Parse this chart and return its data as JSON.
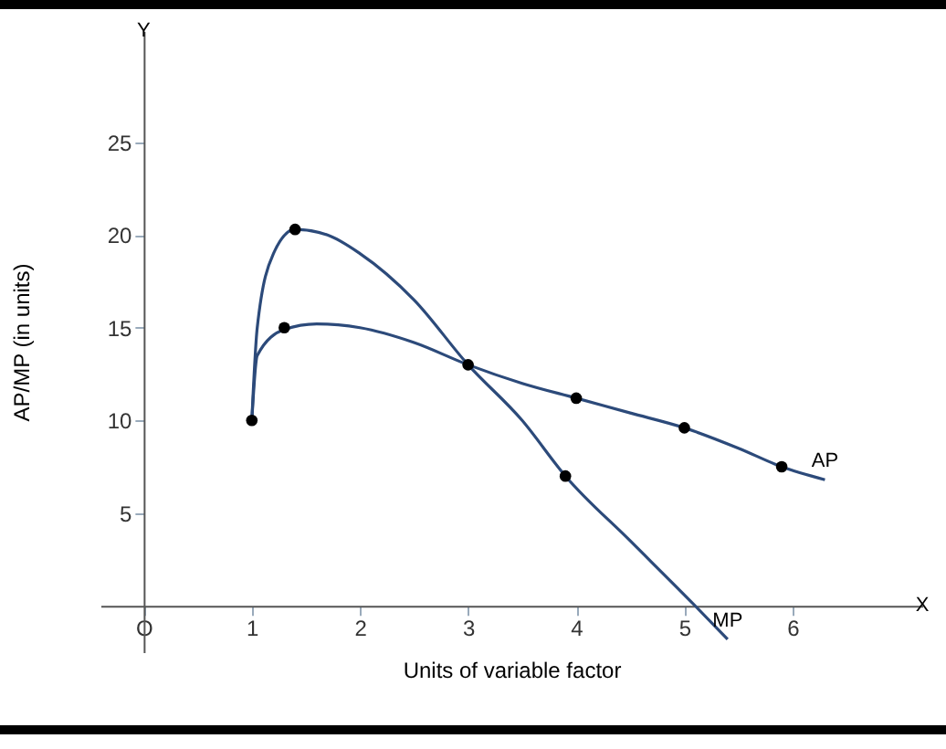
{
  "chart_data": {
    "type": "line",
    "xlabel": "Units of variable factor",
    "ylabel": "AP/MP (in units)",
    "annotations": [
      "X",
      "Y"
    ],
    "xlim": [
      -0.4,
      7.2
    ],
    "ylim": [
      -2.5,
      31
    ],
    "xticks": [
      {
        "value": 0,
        "label": "O"
      },
      1,
      2,
      3,
      4,
      5,
      6
    ],
    "yticks": [
      5,
      10,
      15,
      20,
      25
    ],
    "grid": false,
    "series": [
      {
        "name": "MP",
        "color": "#2c4a7a",
        "x": [
          1,
          1.05,
          1.2,
          1.4,
          1.7,
          2,
          2.5,
          3,
          3.5,
          3.9,
          4.5,
          5.1,
          5.4
        ],
        "values": [
          10,
          15,
          19,
          20.3,
          20,
          19,
          16.5,
          13,
          10,
          7,
          3.5,
          0,
          -1.8
        ]
      },
      {
        "name": "AP",
        "color": "#2c4a7a",
        "x": [
          1,
          1.05,
          1.3,
          1.6,
          2,
          2.5,
          3,
          3.5,
          4,
          4.5,
          5,
          5.5,
          5.9,
          6.3
        ],
        "values": [
          10,
          13.5,
          14.9,
          15.2,
          15,
          14.2,
          13,
          12,
          11.2,
          10.4,
          9.6,
          8.5,
          7.5,
          6.8
        ]
      },
      {
        "type": "scatter",
        "color": "#000000",
        "marker": "circle",
        "x": [
          1,
          1.4,
          1.3,
          3,
          3.9,
          4,
          5,
          5.9
        ],
        "values": [
          10,
          20.3,
          15,
          13,
          7,
          11.2,
          9.6,
          7.5
        ]
      }
    ]
  }
}
